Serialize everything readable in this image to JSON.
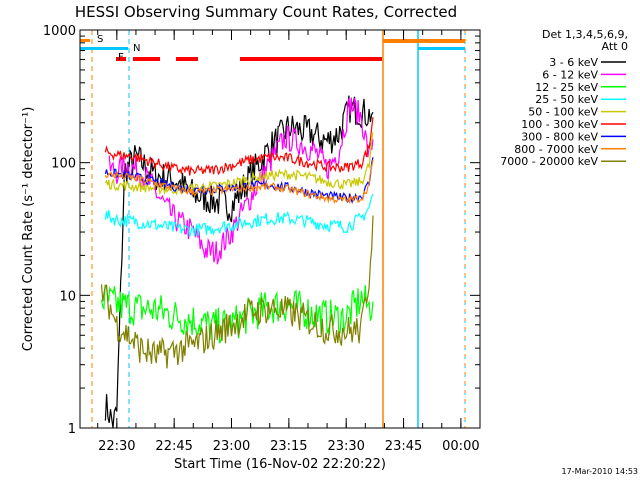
{
  "chart_data": {
    "type": "line",
    "title": "HESSI Observing Summary Count Rates, Corrected",
    "xlabel": "Start Time (16-Nov-02 22:20:22)",
    "ylabel": "Corrected Count Rate (s⁻¹ detector⁻¹)",
    "y_scale": "log",
    "ylim": [
      1,
      1000
    ],
    "y_ticks": [
      1,
      10,
      100,
      1000
    ],
    "y_tick_labels": [
      "1",
      "10",
      "100",
      "1000"
    ],
    "x_range": [
      "22:20:22",
      "00:05"
    ],
    "x_ticks": [
      "22:30",
      "22:45",
      "23:00",
      "23:15",
      "23:30",
      "23:45",
      "00:00"
    ],
    "legend_header": [
      "Det 1,3,4,5,6,9,",
      "Att 0"
    ],
    "footer_timestamp": "17-Mar-2010 14:53",
    "flags": [
      {
        "label": "S",
        "color": "#ff8000"
      },
      {
        "label": "N",
        "color": "#00c8ff"
      },
      {
        "label": "F",
        "color": "#ff0000"
      }
    ],
    "series": [
      {
        "name": "3 - 6 keV",
        "color": "#000000",
        "x": [
          "22:27",
          "22:29",
          "22:30",
          "22:32",
          "22:35",
          "22:40",
          "22:45",
          "22:50",
          "22:55",
          "23:00",
          "23:05",
          "23:10",
          "23:15",
          "23:20",
          "23:25",
          "23:28",
          "23:31",
          "23:34",
          "23:36",
          "23:37"
        ],
        "y": [
          1.5,
          1.1,
          1.3,
          85,
          110,
          80,
          75,
          58,
          52,
          47,
          80,
          130,
          185,
          170,
          145,
          165,
          260,
          240,
          230,
          240
        ]
      },
      {
        "name": "6 - 12 keV",
        "color": "#ff00ff",
        "x": [
          "22:28",
          "22:30",
          "22:32",
          "22:35",
          "22:38",
          "22:41",
          "22:45",
          "22:50",
          "22:53",
          "22:56",
          "23:00",
          "23:05",
          "23:10",
          "23:14",
          "23:18",
          "23:22",
          "23:25",
          "23:28",
          "23:31",
          "23:34",
          "23:36",
          "23:37"
        ],
        "y": [
          90,
          85,
          95,
          90,
          75,
          55,
          38,
          30,
          22,
          21,
          30,
          55,
          100,
          155,
          140,
          120,
          90,
          120,
          280,
          220,
          110,
          150
        ]
      },
      {
        "name": "12 - 25 keV",
        "color": "#00ff00",
        "x": [
          "22:26",
          "22:30",
          "22:35",
          "22:40",
          "22:45",
          "22:50",
          "22:55",
          "23:00",
          "23:05",
          "23:10",
          "23:15",
          "23:20",
          "23:25",
          "23:30",
          "23:34",
          "23:36",
          "23:37"
        ],
        "y": [
          9.5,
          8.5,
          8.0,
          7.8,
          7.0,
          6.5,
          5.8,
          6.0,
          7.2,
          8.2,
          8.5,
          7.5,
          6.8,
          6.8,
          9.5,
          8.0,
          9.0
        ]
      },
      {
        "name": "25 - 50 keV",
        "color": "#00ffff",
        "x": [
          "22:27",
          "22:30",
          "22:35",
          "22:40",
          "22:45",
          "22:50",
          "22:55",
          "23:00",
          "23:05",
          "23:10",
          "23:15",
          "23:20",
          "23:25",
          "23:30",
          "23:34",
          "23:36",
          "23:37"
        ],
        "y": [
          40,
          37,
          36,
          34,
          32,
          31,
          32,
          34,
          36,
          38,
          38,
          36,
          34,
          33,
          38,
          46,
          58
        ]
      },
      {
        "name": "50 - 100 keV",
        "color": "#c8c800",
        "x": [
          "22:27",
          "22:30",
          "22:35",
          "22:40",
          "22:45",
          "22:50",
          "22:55",
          "23:00",
          "23:05",
          "23:10",
          "23:15",
          "23:20",
          "23:25",
          "23:30",
          "23:34",
          "23:36",
          "23:37"
        ],
        "y": [
          70,
          68,
          66,
          64,
          63,
          64,
          66,
          70,
          76,
          80,
          82,
          78,
          72,
          68,
          72,
          95,
          170
        ]
      },
      {
        "name": "100 - 300 keV",
        "color": "#ff0000",
        "x": [
          "22:27",
          "22:30",
          "22:35",
          "22:40",
          "22:45",
          "22:50",
          "22:55",
          "23:00",
          "23:05",
          "23:10",
          "23:15",
          "23:20",
          "23:25",
          "23:30",
          "23:34",
          "23:36",
          "23:37"
        ],
        "y": [
          120,
          115,
          110,
          100,
          90,
          86,
          88,
          95,
          105,
          110,
          108,
          100,
          93,
          92,
          100,
          130,
          220
        ]
      },
      {
        "name": "300 - 800 keV",
        "color": "#0000ff",
        "x": [
          "22:27",
          "22:30",
          "22:35",
          "22:40",
          "22:45",
          "22:50",
          "22:55",
          "23:00",
          "23:05",
          "23:10",
          "23:15",
          "23:20",
          "23:25",
          "23:30",
          "23:34",
          "23:36",
          "23:37"
        ],
        "y": [
          85,
          82,
          78,
          72,
          66,
          62,
          63,
          65,
          67,
          68,
          65,
          60,
          56,
          54,
          56,
          70,
          110
        ]
      },
      {
        "name": "800 - 7000 keV",
        "color": "#ff8000",
        "x": [
          "22:27",
          "22:30",
          "22:35",
          "22:40",
          "22:45",
          "22:50",
          "22:55",
          "23:00",
          "23:05",
          "23:10",
          "23:15",
          "23:20",
          "23:25",
          "23:30",
          "23:34",
          "23:36",
          "23:37"
        ],
        "y": [
          82,
          80,
          76,
          70,
          64,
          60,
          61,
          63,
          65,
          66,
          63,
          58,
          54,
          52,
          54,
          68,
          105
        ]
      },
      {
        "name": "7000 - 20000 keV",
        "color": "#808000",
        "x": [
          "22:26",
          "22:28",
          "22:30",
          "22:33",
          "22:36",
          "22:40",
          "22:45",
          "22:50",
          "22:55",
          "23:00",
          "23:05",
          "23:10",
          "23:15",
          "23:20",
          "23:25",
          "23:30",
          "23:34",
          "23:36",
          "23:37"
        ],
        "y": [
          11,
          8.5,
          6.0,
          5.0,
          4.0,
          3.5,
          3.8,
          4.2,
          5.0,
          6.0,
          7.5,
          8.0,
          7.5,
          6.5,
          5.6,
          5.4,
          5.5,
          14,
          40
        ]
      }
    ],
    "grid": false,
    "legend_position": "right"
  }
}
